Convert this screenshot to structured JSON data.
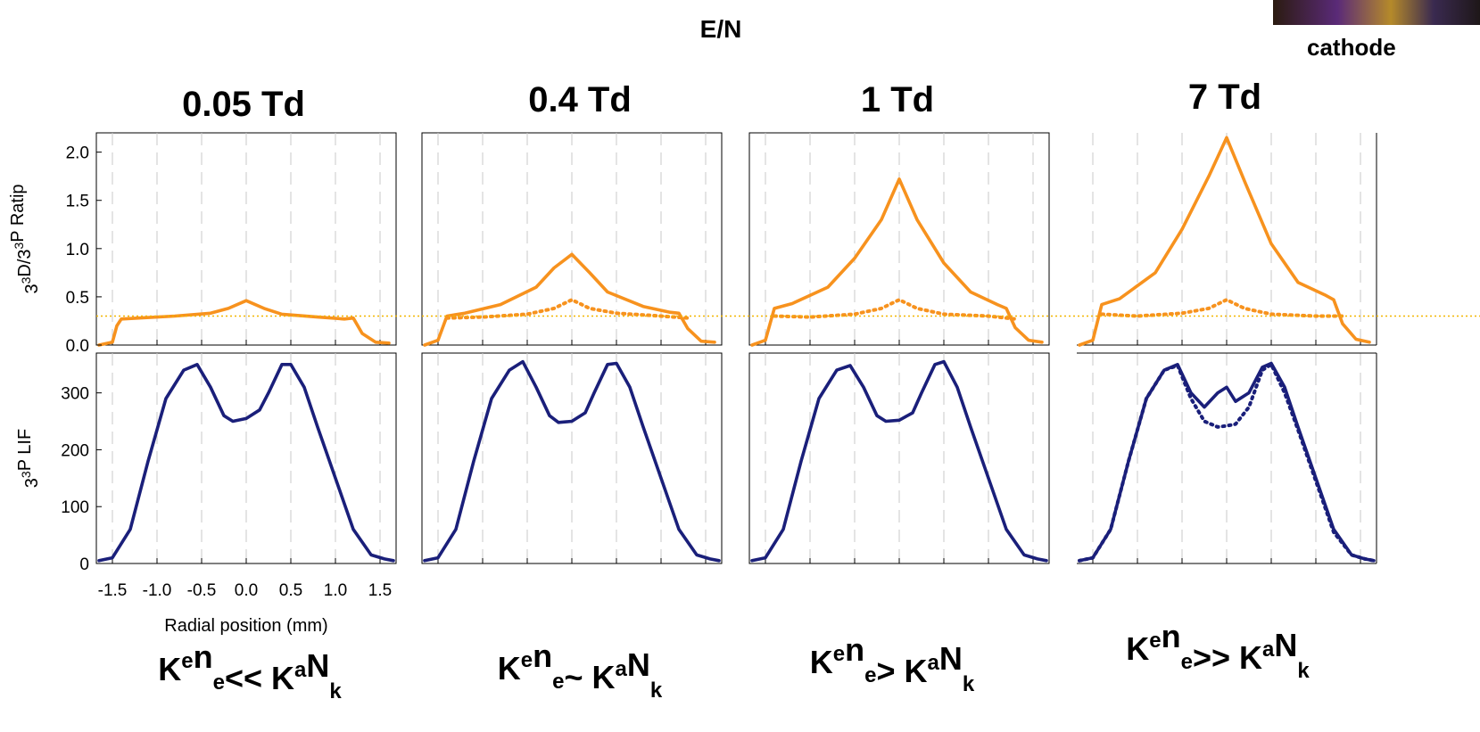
{
  "header": {
    "title": "E/N",
    "cathode_label": "cathode"
  },
  "colors": {
    "ratio": "#f7921e",
    "lif": "#1a1f7a",
    "ref_line": "#f2b600",
    "grid": "#c8c8c8"
  },
  "chart_data": [
    {
      "type": "line",
      "panel": 1,
      "title": "0.05 Td",
      "regime": "Keₙe<< KᵃNₖ",
      "xlabel": "Radial position (mm)",
      "x_ticks": [
        "-1.5",
        "-1.0",
        "-0.5",
        "0.0",
        "0.5",
        "1.0",
        "1.5"
      ],
      "top": {
        "ylabel": "3³D/3³P Ratip",
        "ylim": [
          0,
          2.2
        ],
        "y_ticks": [
          "0.0",
          "0.5",
          "1.0",
          "1.5",
          "2.0"
        ],
        "reference_line": 0.3,
        "series": [
          {
            "style": "solid",
            "x": [
              -1.65,
              -1.5,
              -1.45,
              -1.4,
              -1.2,
              -0.8,
              -0.4,
              -0.2,
              0.0,
              0.2,
              0.4,
              0.8,
              1.1,
              1.2,
              1.3,
              1.45,
              1.6
            ],
            "y": [
              0.0,
              0.03,
              0.2,
              0.27,
              0.28,
              0.3,
              0.33,
              0.38,
              0.46,
              0.38,
              0.32,
              0.29,
              0.27,
              0.28,
              0.12,
              0.03,
              0.02
            ]
          }
        ]
      },
      "bottom": {
        "ylabel": "3³P LIF",
        "ylim": [
          0,
          370
        ],
        "y_ticks": [
          "0",
          "100",
          "200",
          "300"
        ],
        "series": [
          {
            "style": "solid",
            "x": [
              -1.65,
              -1.5,
              -1.3,
              -1.1,
              -0.9,
              -0.7,
              -0.55,
              -0.4,
              -0.25,
              -0.15,
              0.0,
              0.15,
              0.25,
              0.4,
              0.5,
              0.65,
              0.8,
              1.0,
              1.2,
              1.4,
              1.55,
              1.65
            ],
            "y": [
              5,
              10,
              60,
              180,
              290,
              340,
              350,
              310,
              260,
              250,
              255,
              270,
              300,
              350,
              350,
              310,
              240,
              150,
              60,
              15,
              8,
              5
            ]
          }
        ]
      }
    },
    {
      "type": "line",
      "panel": 2,
      "title": "0.4 Td",
      "regime": "Keₙe~ KᵃNₖ",
      "x_ticks": [],
      "top": {
        "ylim": [
          0,
          2.2
        ],
        "reference_line": 0.3,
        "series": [
          {
            "style": "solid",
            "x": [
              -1.65,
              -1.5,
              -1.4,
              -1.2,
              -0.8,
              -0.4,
              -0.2,
              0.0,
              0.2,
              0.4,
              0.8,
              1.1,
              1.2,
              1.3,
              1.45,
              1.6
            ],
            "y": [
              0.0,
              0.05,
              0.3,
              0.33,
              0.42,
              0.6,
              0.8,
              0.94,
              0.75,
              0.55,
              0.4,
              0.34,
              0.33,
              0.17,
              0.04,
              0.03
            ]
          },
          {
            "style": "dotted",
            "x": [
              -1.4,
              -1.0,
              -0.5,
              -0.2,
              0.0,
              0.2,
              0.5,
              1.0,
              1.3
            ],
            "y": [
              0.28,
              0.29,
              0.32,
              0.38,
              0.47,
              0.38,
              0.33,
              0.3,
              0.28
            ]
          }
        ]
      },
      "bottom": {
        "ylim": [
          0,
          370
        ],
        "series": [
          {
            "style": "solid",
            "x": [
              -1.65,
              -1.5,
              -1.3,
              -1.1,
              -0.9,
              -0.7,
              -0.55,
              -0.4,
              -0.25,
              -0.15,
              0.0,
              0.15,
              0.25,
              0.4,
              0.5,
              0.65,
              0.8,
              1.0,
              1.2,
              1.4,
              1.55,
              1.65
            ],
            "y": [
              5,
              10,
              60,
              180,
              290,
              340,
              355,
              310,
              260,
              248,
              250,
              265,
              300,
              350,
              352,
              310,
              240,
              150,
              60,
              15,
              8,
              5
            ]
          }
        ]
      }
    },
    {
      "type": "line",
      "panel": 3,
      "title": "1 Td",
      "regime": "Keₙe> KᵃNₖ",
      "x_ticks": [],
      "top": {
        "ylim": [
          0,
          2.2
        ],
        "reference_line": 0.3,
        "series": [
          {
            "style": "solid",
            "x": [
              -1.65,
              -1.5,
              -1.4,
              -1.2,
              -0.8,
              -0.5,
              -0.2,
              0.0,
              0.2,
              0.5,
              0.8,
              1.1,
              1.2,
              1.3,
              1.45,
              1.6
            ],
            "y": [
              0.0,
              0.05,
              0.38,
              0.43,
              0.6,
              0.9,
              1.3,
              1.72,
              1.3,
              0.85,
              0.55,
              0.42,
              0.38,
              0.18,
              0.05,
              0.03
            ]
          },
          {
            "style": "dotted",
            "x": [
              -1.4,
              -1.0,
              -0.5,
              -0.2,
              0.0,
              0.2,
              0.5,
              1.0,
              1.3
            ],
            "y": [
              0.3,
              0.29,
              0.32,
              0.38,
              0.47,
              0.38,
              0.32,
              0.3,
              0.27
            ]
          }
        ]
      },
      "bottom": {
        "ylim": [
          0,
          370
        ],
        "series": [
          {
            "style": "solid",
            "x": [
              -1.65,
              -1.5,
              -1.3,
              -1.1,
              -0.9,
              -0.7,
              -0.55,
              -0.4,
              -0.25,
              -0.15,
              0.0,
              0.15,
              0.25,
              0.4,
              0.5,
              0.65,
              0.8,
              1.0,
              1.2,
              1.4,
              1.55,
              1.65
            ],
            "y": [
              5,
              10,
              60,
              180,
              290,
              340,
              348,
              310,
              260,
              250,
              252,
              265,
              300,
              350,
              355,
              310,
              240,
              150,
              60,
              15,
              8,
              5
            ]
          }
        ]
      }
    },
    {
      "type": "line",
      "panel": 4,
      "title": "7 Td",
      "regime": "Keₙe>> KᵃNₖ",
      "x_ticks": [],
      "top": {
        "ylim": [
          0,
          2.2
        ],
        "reference_line": 0.3,
        "series": [
          {
            "style": "solid",
            "x": [
              -1.65,
              -1.5,
              -1.4,
              -1.2,
              -0.8,
              -0.5,
              -0.2,
              0.0,
              0.2,
              0.5,
              0.8,
              1.1,
              1.2,
              1.3,
              1.45,
              1.6
            ],
            "y": [
              0.0,
              0.05,
              0.42,
              0.48,
              0.75,
              1.2,
              1.75,
              2.15,
              1.7,
              1.05,
              0.65,
              0.52,
              0.47,
              0.22,
              0.06,
              0.03
            ]
          },
          {
            "style": "dotted",
            "x": [
              -1.4,
              -1.0,
              -0.5,
              -0.2,
              0.0,
              0.2,
              0.5,
              1.0,
              1.3
            ],
            "y": [
              0.32,
              0.3,
              0.33,
              0.38,
              0.47,
              0.38,
              0.32,
              0.3,
              0.3
            ]
          }
        ]
      },
      "bottom": {
        "ylim": [
          0,
          370
        ],
        "series": [
          {
            "style": "solid",
            "x": [
              -1.65,
              -1.5,
              -1.3,
              -1.1,
              -0.9,
              -0.7,
              -0.55,
              -0.4,
              -0.25,
              -0.1,
              0.0,
              0.1,
              0.25,
              0.4,
              0.5,
              0.65,
              0.8,
              1.0,
              1.2,
              1.4,
              1.55,
              1.65
            ],
            "y": [
              5,
              10,
              60,
              180,
              290,
              340,
              350,
              300,
              275,
              300,
              310,
              285,
              300,
              345,
              352,
              310,
              240,
              150,
              60,
              15,
              8,
              5
            ]
          },
          {
            "style": "dotted",
            "x": [
              -1.65,
              -1.5,
              -1.3,
              -1.1,
              -0.9,
              -0.7,
              -0.55,
              -0.4,
              -0.25,
              -0.1,
              0.0,
              0.1,
              0.25,
              0.4,
              0.5,
              0.65,
              0.8,
              1.0,
              1.2,
              1.4,
              1.55,
              1.65
            ],
            "y": [
              5,
              10,
              60,
              180,
              290,
              340,
              348,
              290,
              250,
              240,
              242,
              245,
              275,
              340,
              350,
              300,
              235,
              145,
              55,
              15,
              8,
              5
            ]
          }
        ]
      }
    }
  ]
}
